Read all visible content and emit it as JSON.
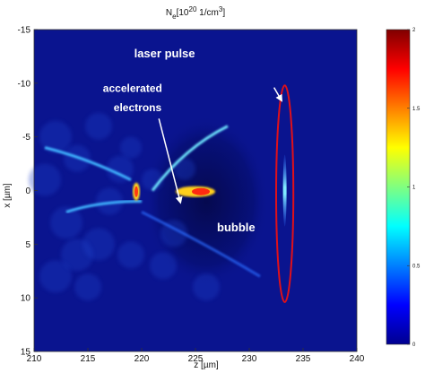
{
  "chart_data": {
    "type": "heatmap",
    "title": {
      "base": "N",
      "sub": "e",
      "bracket_open": "[10",
      "sup1": "20",
      "mid": " 1/cm",
      "sup2": "3",
      "bracket_close": "]"
    },
    "xlabel": "z [µm]",
    "ylabel": "x [µm]",
    "xlim": [
      210,
      240
    ],
    "ylim": [
      -15,
      15
    ],
    "y_reversed": true,
    "x_ticks": [
      "210",
      "215",
      "220",
      "225",
      "230",
      "235",
      "240"
    ],
    "y_ticks": [
      "-15",
      "-10",
      "-5",
      "0",
      "5",
      "10",
      "15"
    ],
    "colorbar": {
      "colormap": "jet",
      "range": [
        0,
        2
      ],
      "ticks": [
        "0",
        "0.5",
        "1",
        "1.5",
        "2"
      ]
    },
    "annotations": {
      "laser": "laser pulse",
      "electrons_line1": "accelerated",
      "electrons_line2": "electrons",
      "bubble": "bubble"
    },
    "laser_pulse_ellipse": {
      "center_z": 233.3,
      "center_x": 0.3,
      "radius_z": 0.8,
      "radius_x": 10.1,
      "color": "#e0101a"
    },
    "background_color": "#0a148f",
    "grid": false,
    "legend": "none"
  }
}
